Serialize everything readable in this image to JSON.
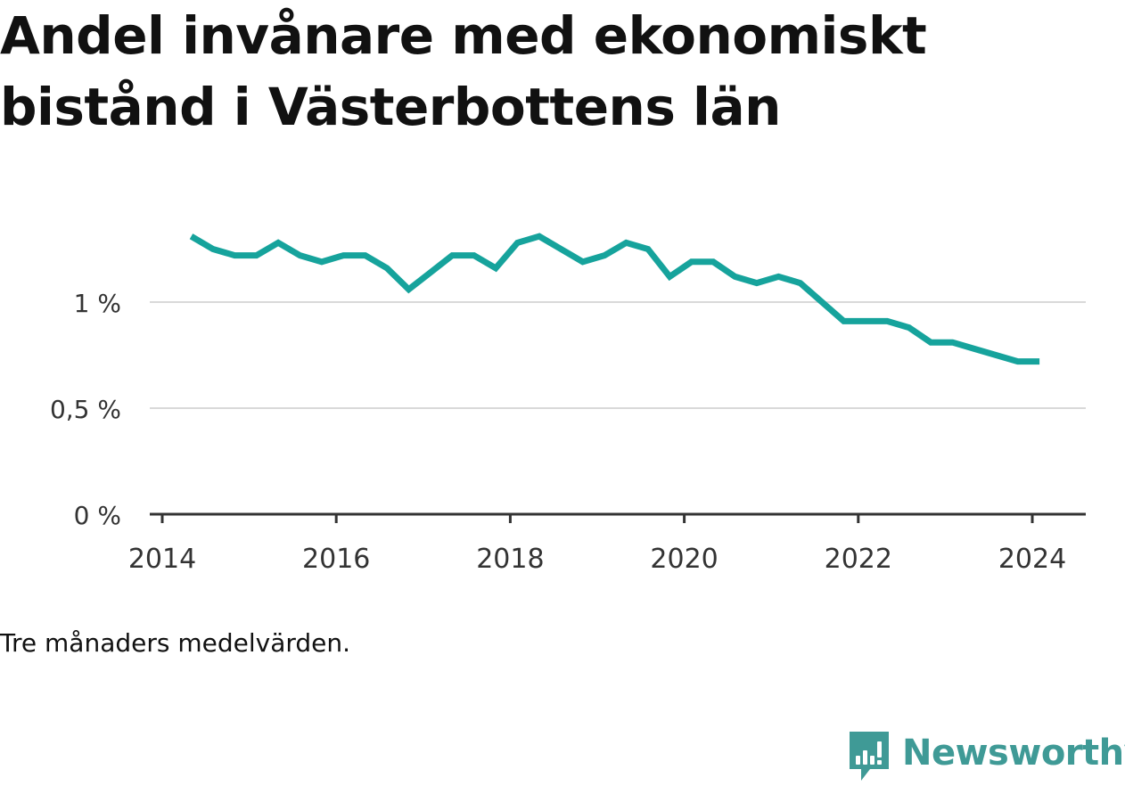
{
  "chart_data": {
    "type": "line",
    "title": "Andel invånare med ekonomiskt bistånd i Västerbottens län",
    "note": "Tre månaders medelvärden.",
    "xlabel": "",
    "ylabel": "",
    "x_ticks": [
      "2014",
      "2016",
      "2018",
      "2020",
      "2022",
      "2024"
    ],
    "y_ticks": [
      {
        "value": 0,
        "label": "0 %"
      },
      {
        "value": 0.5,
        "label": "0,5 %"
      },
      {
        "value": 1,
        "label": "1 %"
      }
    ],
    "ylim": [
      0,
      1.4
    ],
    "grid": true,
    "line_color": "#16a39c",
    "series": [
      {
        "name": "",
        "points": [
          [
            "2014-05",
            1.31
          ],
          [
            "2014-08",
            1.25
          ],
          [
            "2014-11",
            1.22
          ],
          [
            "2015-02",
            1.22
          ],
          [
            "2015-05",
            1.28
          ],
          [
            "2015-08",
            1.22
          ],
          [
            "2015-11",
            1.19
          ],
          [
            "2016-02",
            1.22
          ],
          [
            "2016-05",
            1.22
          ],
          [
            "2016-08",
            1.16
          ],
          [
            "2016-11",
            1.06
          ],
          [
            "2017-02",
            1.14
          ],
          [
            "2017-05",
            1.22
          ],
          [
            "2017-08",
            1.22
          ],
          [
            "2017-11",
            1.16
          ],
          [
            "2018-02",
            1.28
          ],
          [
            "2018-05",
            1.31
          ],
          [
            "2018-08",
            1.25
          ],
          [
            "2018-11",
            1.19
          ],
          [
            "2019-02",
            1.22
          ],
          [
            "2019-05",
            1.28
          ],
          [
            "2019-08",
            1.25
          ],
          [
            "2019-11",
            1.12
          ],
          [
            "2020-02",
            1.19
          ],
          [
            "2020-05",
            1.19
          ],
          [
            "2020-08",
            1.12
          ],
          [
            "2020-11",
            1.09
          ],
          [
            "2021-02",
            1.12
          ],
          [
            "2021-05",
            1.09
          ],
          [
            "2021-08",
            1.0
          ],
          [
            "2021-11",
            0.91
          ],
          [
            "2022-02",
            0.91
          ],
          [
            "2022-05",
            0.91
          ],
          [
            "2022-08",
            0.88
          ],
          [
            "2022-11",
            0.81
          ],
          [
            "2023-02",
            0.81
          ],
          [
            "2023-05",
            0.78
          ],
          [
            "2023-08",
            0.75
          ],
          [
            "2023-11",
            0.72
          ],
          [
            "2024-02",
            0.72
          ]
        ]
      }
    ]
  },
  "brand": {
    "name": "Newsworthy",
    "color": "#3f9a96",
    "icon": "newsworthy-logo-icon"
  }
}
